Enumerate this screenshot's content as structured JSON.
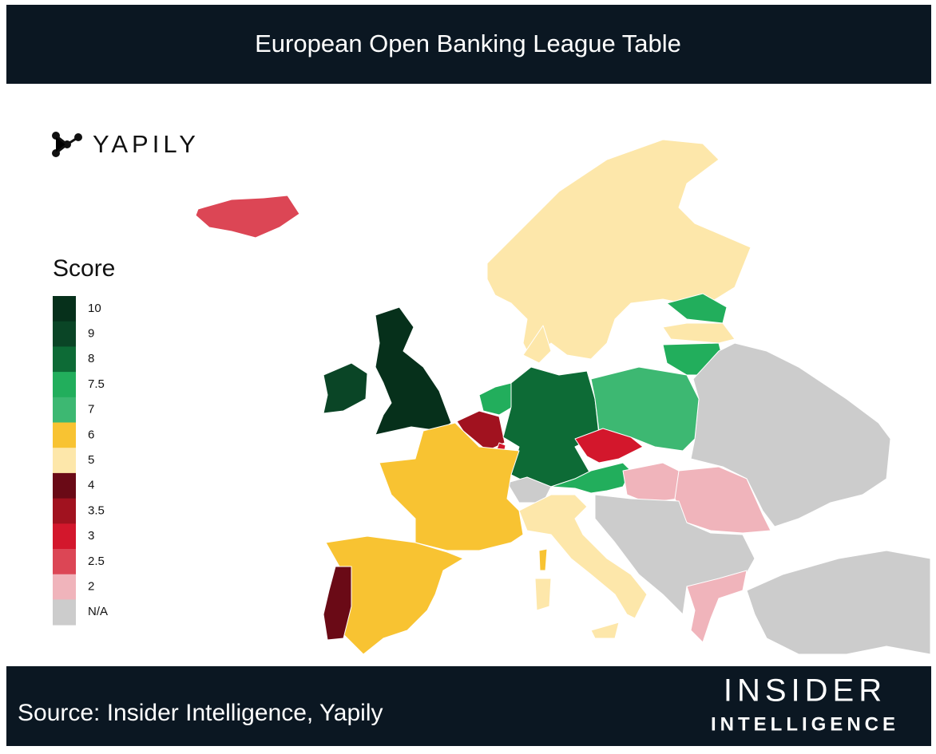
{
  "header": {
    "title": "European Open Banking League Table"
  },
  "brand": "YAPILY",
  "legend": {
    "title": "Score",
    "items": [
      {
        "value": 10,
        "color": "#06301b"
      },
      {
        "value": 9,
        "color": "#0a4526"
      },
      {
        "value": 8,
        "color": "#0d6b36"
      },
      {
        "value": 7.5,
        "color": "#22ae5c"
      },
      {
        "value": 7,
        "color": "#3db872"
      },
      {
        "value": 6,
        "color": "#f8c332"
      },
      {
        "value": 5,
        "color": "#fde7aa"
      },
      {
        "value": 4,
        "color": "#6a0a16"
      },
      {
        "value": 3.5,
        "color": "#a1121f"
      },
      {
        "value": 3,
        "color": "#d3172c"
      },
      {
        "value": 2.5,
        "color": "#dc4655"
      },
      {
        "value": 2,
        "color": "#f0b4bb"
      },
      {
        "label": "N/A",
        "color": "#cccccc"
      }
    ]
  },
  "footer": {
    "source": "Source: Insider Intelligence, Yapily",
    "logo_top": "INSIDER",
    "logo_bottom": "INTELLIGENCE"
  }
}
